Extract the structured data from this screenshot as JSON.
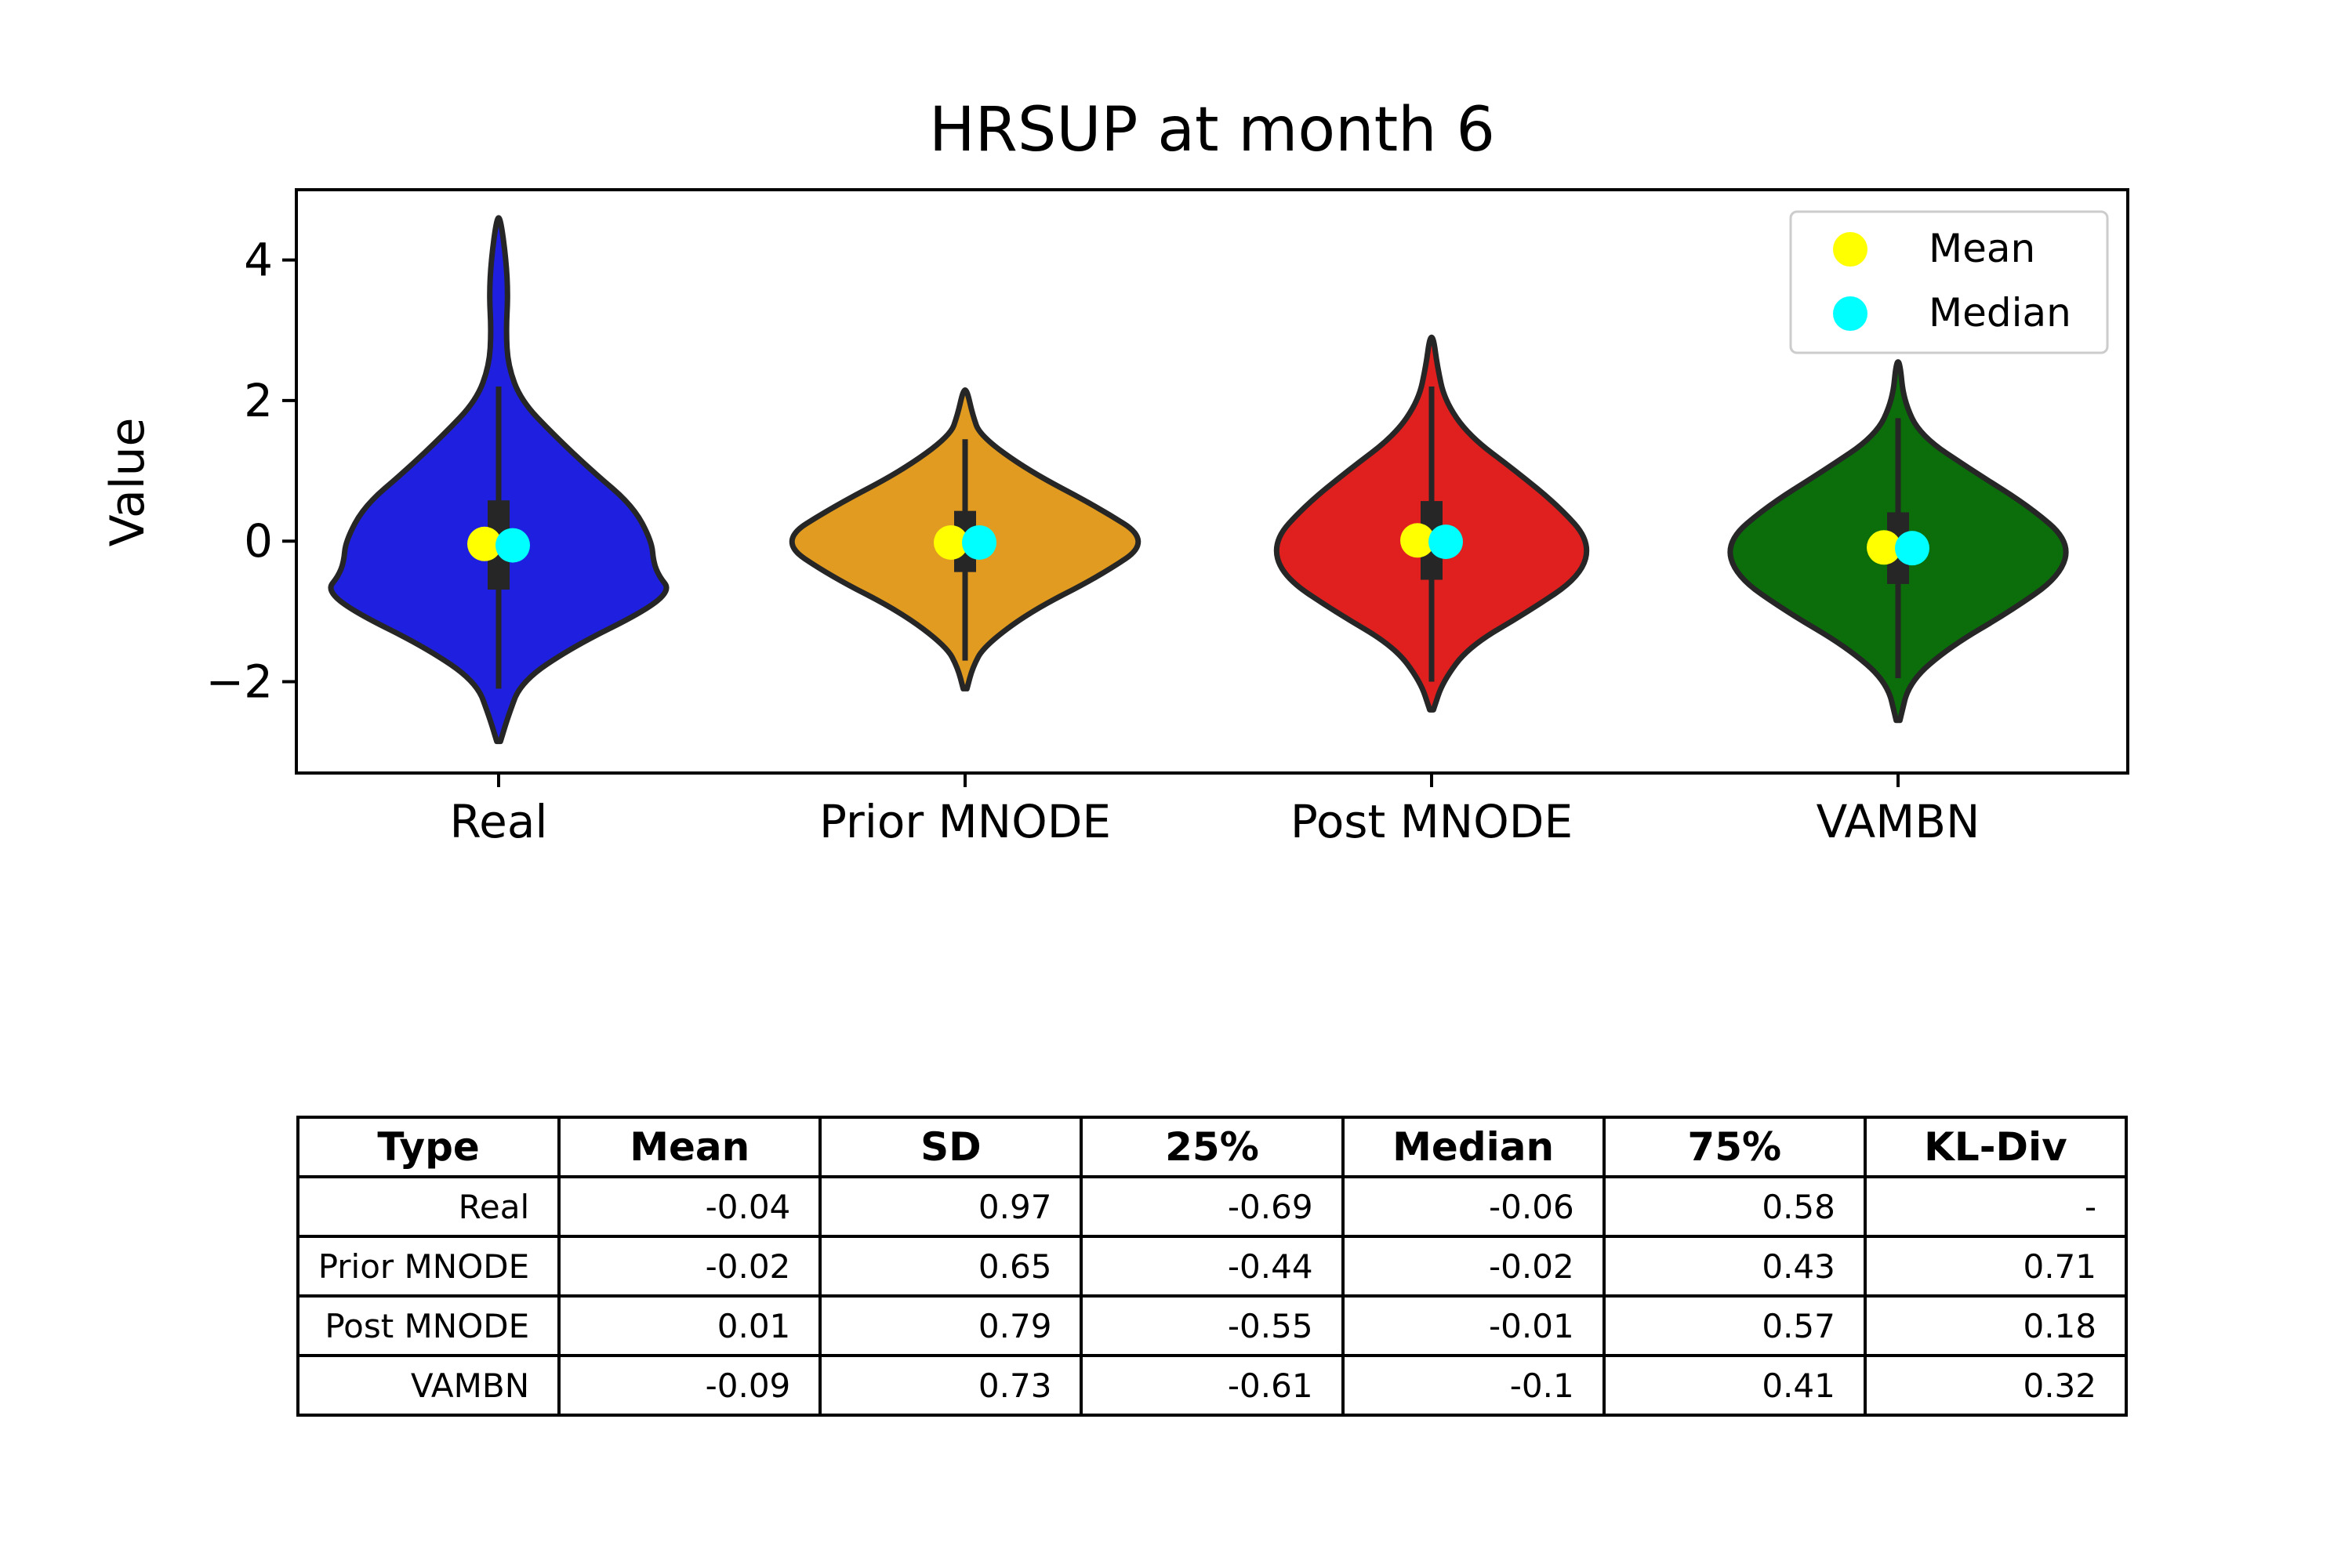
{
  "chart_data": {
    "type": "violin",
    "title": "HRSUP at month 6",
    "xlabel": "",
    "ylabel": "Value",
    "ylim": [
      -3.3,
      5.0
    ],
    "yticks": [
      -2,
      0,
      2,
      4
    ],
    "ytick_labels": [
      "−2",
      "0",
      "2",
      "4"
    ],
    "categories": [
      "Real",
      "Prior MNODE",
      "Post MNODE",
      "VAMBN"
    ],
    "legend": {
      "placement": "top-right",
      "entries": [
        "Mean",
        "Median"
      ]
    },
    "grid": false,
    "colors": {
      "Real": "#1f1fe0",
      "Prior MNODE": "#e09b20",
      "Post MNODE": "#e01f1f",
      "VAMBN": "#0b6e0b",
      "mean": "#ffff00",
      "median": "#00ffff",
      "outline": "#262626"
    },
    "series": [
      {
        "category": "Real",
        "mean": -0.04,
        "median": -0.06,
        "q1": -0.69,
        "q3": 0.58,
        "whisker_low": -2.1,
        "whisker_high": 2.2,
        "min": -2.85,
        "max": 4.6,
        "profile": [
          [
            -2.85,
            0.01
          ],
          [
            -2.5,
            0.05
          ],
          [
            -2.0,
            0.12
          ],
          [
            -1.5,
            0.4
          ],
          [
            -1.0,
            0.78
          ],
          [
            -0.7,
            0.92
          ],
          [
            -0.5,
            0.86
          ],
          [
            -0.3,
            0.83
          ],
          [
            0.0,
            0.82
          ],
          [
            0.5,
            0.72
          ],
          [
            1.0,
            0.5
          ],
          [
            1.5,
            0.3
          ],
          [
            2.0,
            0.12
          ],
          [
            2.5,
            0.05
          ],
          [
            3.0,
            0.04
          ],
          [
            3.5,
            0.05
          ],
          [
            4.0,
            0.04
          ],
          [
            4.6,
            0.01
          ]
        ]
      },
      {
        "category": "Prior MNODE",
        "mean": -0.02,
        "median": -0.02,
        "q1": -0.44,
        "q3": 0.43,
        "whisker_low": -1.7,
        "whisker_high": 1.45,
        "min": -2.1,
        "max": 2.15,
        "profile": [
          [
            -2.1,
            0.01
          ],
          [
            -1.8,
            0.04
          ],
          [
            -1.5,
            0.1
          ],
          [
            -1.0,
            0.35
          ],
          [
            -0.5,
            0.72
          ],
          [
            0.0,
            1.0
          ],
          [
            0.5,
            0.7
          ],
          [
            1.0,
            0.34
          ],
          [
            1.5,
            0.08
          ],
          [
            1.8,
            0.04
          ],
          [
            2.15,
            0.01
          ]
        ]
      },
      {
        "category": "Post MNODE",
        "mean": 0.01,
        "median": -0.01,
        "q1": -0.55,
        "q3": 0.57,
        "whisker_low": -2.0,
        "whisker_high": 2.2,
        "min": -2.4,
        "max": 2.9,
        "profile": [
          [
            -2.4,
            0.01
          ],
          [
            -2.0,
            0.06
          ],
          [
            -1.5,
            0.2
          ],
          [
            -1.0,
            0.52
          ],
          [
            -0.5,
            0.8
          ],
          [
            0.0,
            0.85
          ],
          [
            0.5,
            0.68
          ],
          [
            1.0,
            0.45
          ],
          [
            1.5,
            0.2
          ],
          [
            2.0,
            0.07
          ],
          [
            2.5,
            0.03
          ],
          [
            2.9,
            0.01
          ]
        ]
      },
      {
        "category": "VAMBN",
        "mean": -0.09,
        "median": -0.1,
        "q1": -0.61,
        "q3": 0.41,
        "whisker_low": -1.95,
        "whisker_high": 1.75,
        "min": -2.55,
        "max": 2.55,
        "profile": [
          [
            -2.55,
            0.01
          ],
          [
            -2.0,
            0.06
          ],
          [
            -1.5,
            0.28
          ],
          [
            -1.0,
            0.6
          ],
          [
            -0.5,
            0.87
          ],
          [
            0.0,
            0.92
          ],
          [
            0.5,
            0.7
          ],
          [
            1.0,
            0.4
          ],
          [
            1.5,
            0.12
          ],
          [
            2.0,
            0.03
          ],
          [
            2.55,
            0.01
          ]
        ]
      }
    ]
  },
  "table": {
    "headers": [
      "Type",
      "Mean",
      "SD",
      "25%",
      "Median",
      "75%",
      "KL-Div"
    ],
    "rows": [
      [
        "Real",
        "-0.04",
        "0.97",
        "-0.69",
        "-0.06",
        "0.58",
        "-"
      ],
      [
        "Prior MNODE",
        "-0.02",
        "0.65",
        "-0.44",
        "-0.02",
        "0.43",
        "0.71"
      ],
      [
        "Post MNODE",
        "0.01",
        "0.79",
        "-0.55",
        "-0.01",
        "0.57",
        "0.18"
      ],
      [
        "VAMBN",
        "-0.09",
        "0.73",
        "-0.61",
        "-0.1",
        "0.41",
        "0.32"
      ]
    ]
  }
}
